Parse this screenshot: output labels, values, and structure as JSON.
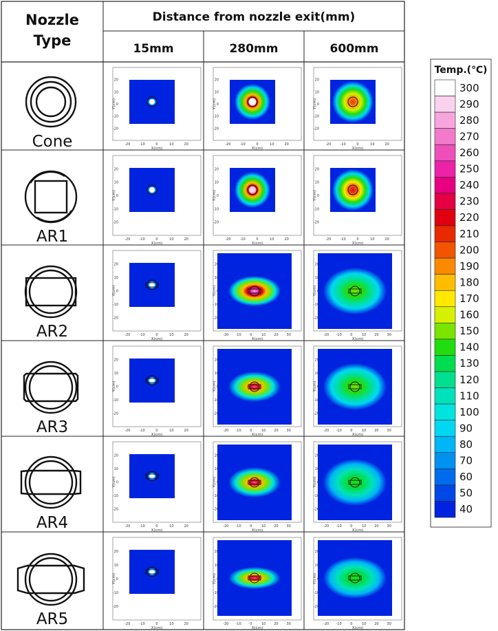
{
  "table": {
    "header_nozzle_line1": "Nozzle",
    "header_nozzle_line2": "Type",
    "header_distance": "Distance from nozzle exit(mm)",
    "columns": [
      "15mm",
      "280mm",
      "600mm"
    ],
    "rows": [
      {
        "label": "Cone",
        "shape": "cone"
      },
      {
        "label": "AR1",
        "shape": "square"
      },
      {
        "label": "AR2",
        "shape": "rect2"
      },
      {
        "label": "AR3",
        "shape": "rect3"
      },
      {
        "label": "AR4",
        "shape": "rect4"
      },
      {
        "label": "AR5",
        "shape": "rect5"
      }
    ]
  },
  "plot_axes": {
    "xlabel": "X(cm)",
    "ylabel": "Y(cm)",
    "small_x_ticks": [
      "-20",
      "-10",
      "0",
      "10",
      "20"
    ],
    "small_y_ticks": [
      "20",
      "10",
      "0",
      "-10",
      "-20"
    ],
    "large_x_ticks": [
      "-20",
      "-10",
      "0",
      "10",
      "20",
      "30"
    ],
    "large_y_ticks": [
      "20",
      "10",
      "0",
      "-10",
      "-20"
    ]
  },
  "legend": {
    "title": "Temp.(℃)",
    "levels": [
      "300",
      "290",
      "280",
      "270",
      "260",
      "250",
      "240",
      "230",
      "220",
      "210",
      "200",
      "190",
      "180",
      "170",
      "160",
      "150",
      "140",
      "130",
      "120",
      "110",
      "100",
      "90",
      "80",
      "70",
      "60",
      "50",
      "40"
    ],
    "colors": [
      "#ffffff",
      "#fbd2ee",
      "#f7a6dd",
      "#f37acb",
      "#ef4fb9",
      "#eb23a6",
      "#e7007f",
      "#e40042",
      "#e00010",
      "#e92a00",
      "#f35400",
      "#fb8a00",
      "#ffbd00",
      "#ffe900",
      "#d6f000",
      "#7ae400",
      "#21dc0f",
      "#00de4f",
      "#00e08e",
      "#00e2bc",
      "#00e4df",
      "#00d8f3",
      "#00b6f6",
      "#0091f1",
      "#006ced",
      "#0047e8",
      "#0023e0"
    ]
  },
  "chart_data": {
    "type": "heatmap",
    "description_source": "temperature contour maps per nozzle type and distance",
    "colorbar_range": [
      40,
      300
    ],
    "grid": [
      [
        {
          "extent": "small",
          "spread": "none",
          "peak": 40
        },
        {
          "extent": "small",
          "spread": "round",
          "peak": 260
        },
        {
          "extent": "small",
          "spread": "round-wide",
          "peak": 210
        }
      ],
      [
        {
          "extent": "small",
          "spread": "none",
          "peak": 40
        },
        {
          "extent": "small",
          "spread": "round",
          "peak": 230
        },
        {
          "extent": "small",
          "spread": "round-wide",
          "peak": 220
        }
      ],
      [
        {
          "extent": "small",
          "spread": "none",
          "peak": 40
        },
        {
          "extent": "large",
          "spread": "oval",
          "peak": 300
        },
        {
          "extent": "large",
          "spread": "oval-wide",
          "peak": 150
        }
      ],
      [
        {
          "extent": "small",
          "spread": "none",
          "peak": 40
        },
        {
          "extent": "large",
          "spread": "oval",
          "peak": 270
        },
        {
          "extent": "large",
          "spread": "oval-wide",
          "peak": 130
        }
      ],
      [
        {
          "extent": "small",
          "spread": "none",
          "peak": 40
        },
        {
          "extent": "large",
          "spread": "oval",
          "peak": 230
        },
        {
          "extent": "large",
          "spread": "oval-wide",
          "peak": 120
        }
      ],
      [
        {
          "extent": "small",
          "spread": "none",
          "peak": 40
        },
        {
          "extent": "large",
          "spread": "flat",
          "peak": 220
        },
        {
          "extent": "large",
          "spread": "flat-wide",
          "peak": 120
        }
      ]
    ]
  }
}
